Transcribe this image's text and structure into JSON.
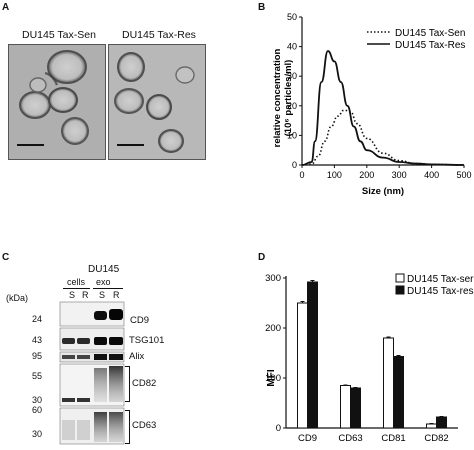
{
  "panels": {
    "a": {
      "letter": "A",
      "images": [
        {
          "label": "DU145 Tax-Sen"
        },
        {
          "label": "DU145 Tax-Res"
        }
      ]
    },
    "b": {
      "letter": "B",
      "legend": [
        "DU145 Tax-Sen",
        "DU145 Tax-Res"
      ],
      "ylabel_line1": "relative concentration",
      "ylabel_line2": "(10⁶ particles/ml)",
      "xlabel": "Size (nm)"
    },
    "c": {
      "letter": "C",
      "cell_line": "DU145",
      "group_cells": "cells",
      "group_exo": "exo",
      "lane_labels": [
        "S",
        "R",
        "S",
        "R"
      ],
      "kda": "(kDa)",
      "markers": [
        "24",
        "43",
        "95",
        "55",
        "30",
        "60",
        "30"
      ],
      "proteins": [
        "CD9",
        "TSG101",
        "Alix",
        "CD82",
        "CD63"
      ]
    },
    "d": {
      "letter": "D",
      "ylabel": "MFI",
      "legend": [
        "DU145 Tax-ser",
        "DU145 Tax-res"
      ]
    }
  },
  "chart_data": [
    {
      "type": "line",
      "panel": "B",
      "xlabel": "Size (nm)",
      "ylabel": "relative concentration (10⁶ particles/ml)",
      "xlim": [
        0,
        500
      ],
      "ylim": [
        0,
        50
      ],
      "xticks": [
        "0",
        "100",
        "200",
        "300",
        "400",
        "500"
      ],
      "yticks": [
        "0",
        "10",
        "20",
        "30",
        "40",
        "50"
      ],
      "legend_position": "top-right",
      "series": [
        {
          "name": "DU145 Tax-Sen",
          "style": "dotted",
          "x": [
            0,
            30,
            50,
            70,
            90,
            110,
            130,
            150,
            170,
            200,
            250,
            300,
            350,
            400,
            500
          ],
          "y": [
            0,
            0.3,
            3,
            8,
            13,
            16.5,
            18.5,
            18,
            14,
            9,
            4,
            1.5,
            0.5,
            0.2,
            0
          ]
        },
        {
          "name": "DU145 Tax-Res",
          "style": "solid",
          "x": [
            0,
            30,
            40,
            60,
            80,
            100,
            120,
            140,
            160,
            180,
            200,
            250,
            300,
            350,
            400,
            500
          ],
          "y": [
            0,
            1,
            8,
            28,
            38.5,
            35,
            28,
            20,
            13,
            8,
            5,
            2.5,
            1,
            0.5,
            0.2,
            0
          ]
        }
      ]
    },
    {
      "type": "bar",
      "panel": "D",
      "ylabel": "MFI",
      "ylim": [
        0,
        300
      ],
      "yticks": [
        "0",
        "100",
        "200",
        "300"
      ],
      "categories": [
        "CD9",
        "CD63",
        "CD81",
        "CD82"
      ],
      "legend_position": "top-right",
      "colors": [
        "#ffffff",
        "#111111"
      ],
      "series": [
        {
          "name": "DU145 Tax-ser",
          "values": [
            250,
            85,
            180,
            8
          ],
          "errors": [
            3,
            1,
            2,
            1
          ]
        },
        {
          "name": "DU145 Tax-res",
          "values": [
            292,
            80,
            143,
            22
          ],
          "errors": [
            3,
            1,
            2,
            1
          ]
        }
      ]
    }
  ]
}
